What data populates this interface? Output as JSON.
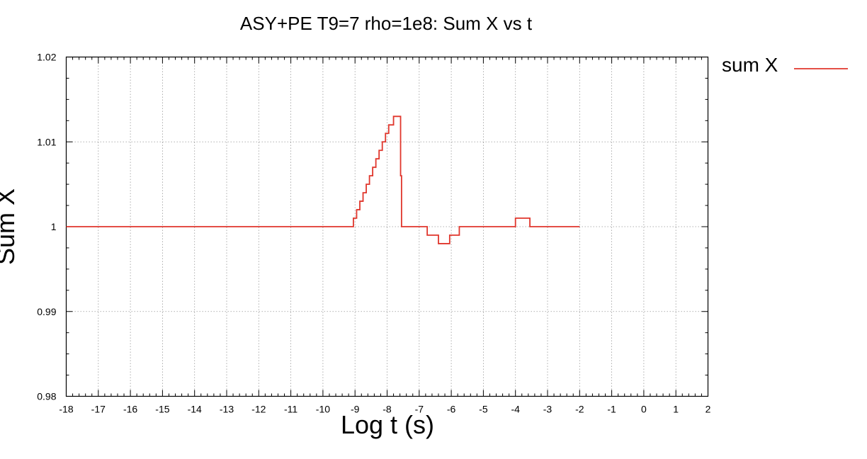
{
  "chart_data": {
    "type": "line",
    "title": "ASY+PE T9=7 rho=1e8: Sum X  vs t",
    "xlabel": "Log t (s)",
    "ylabel": "Sum X",
    "xlim": [
      -18,
      2
    ],
    "ylim": [
      0.98,
      1.02
    ],
    "x_ticks": [
      "-18",
      "-17",
      "-16",
      "-15",
      "-14",
      "-13",
      "-12",
      "-11",
      "-10",
      "-9",
      "-8",
      "-7",
      "-6",
      "-5",
      "-4",
      "-3",
      "-2",
      "-1",
      "0",
      "1",
      "2"
    ],
    "y_ticks": [
      "0.98",
      "0.99",
      "1",
      "1.01",
      "1.02"
    ],
    "grid": true,
    "legend_position": "outside-top-right",
    "colors": {
      "series": "#e0362c",
      "grid": "#999999",
      "axis": "#000000"
    },
    "series": [
      {
        "name": "sum X",
        "step": true,
        "points": [
          [
            -18,
            1.0
          ],
          [
            -9.1,
            1.0
          ],
          [
            -9.05,
            1.001
          ],
          [
            -8.95,
            1.002
          ],
          [
            -8.85,
            1.003
          ],
          [
            -8.75,
            1.004
          ],
          [
            -8.65,
            1.005
          ],
          [
            -8.55,
            1.006
          ],
          [
            -8.45,
            1.007
          ],
          [
            -8.35,
            1.008
          ],
          [
            -8.25,
            1.009
          ],
          [
            -8.15,
            1.01
          ],
          [
            -8.05,
            1.011
          ],
          [
            -7.95,
            1.012
          ],
          [
            -7.8,
            1.013
          ],
          [
            -7.65,
            1.013
          ],
          [
            -7.58,
            1.006
          ],
          [
            -7.55,
            1.0
          ],
          [
            -6.8,
            1.0
          ],
          [
            -6.75,
            0.999
          ],
          [
            -6.5,
            0.999
          ],
          [
            -6.4,
            0.998
          ],
          [
            -6.15,
            0.998
          ],
          [
            -6.05,
            0.999
          ],
          [
            -5.8,
            0.999
          ],
          [
            -5.75,
            1.0
          ],
          [
            -4.05,
            1.0
          ],
          [
            -4.0,
            1.001
          ],
          [
            -3.6,
            1.001
          ],
          [
            -3.55,
            1.0
          ],
          [
            -2,
            1.0
          ]
        ]
      }
    ]
  }
}
